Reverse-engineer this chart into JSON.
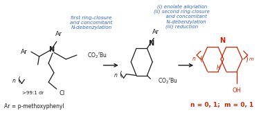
{
  "bg_color": "#ffffff",
  "blue_color": "#3366CC",
  "red_color": "#CC2200",
  "black_color": "#1a1a1a",
  "label_ar_bottom": "Ar = p-methoxyphenyl",
  "label_dr": ">99:1 dr",
  "label_n_m": "n = 0, 1;  m = 0, 1",
  "text_left": "first ring-closure\nand concomitant\nN-debenzylation",
  "text_right": "(i) enolate alkylation\n(ii) second ring-closure\n      and concomitant\n      N-debenzylation\n(iii) reduction",
  "figsize": [
    3.77,
    1.67
  ],
  "dpi": 100
}
